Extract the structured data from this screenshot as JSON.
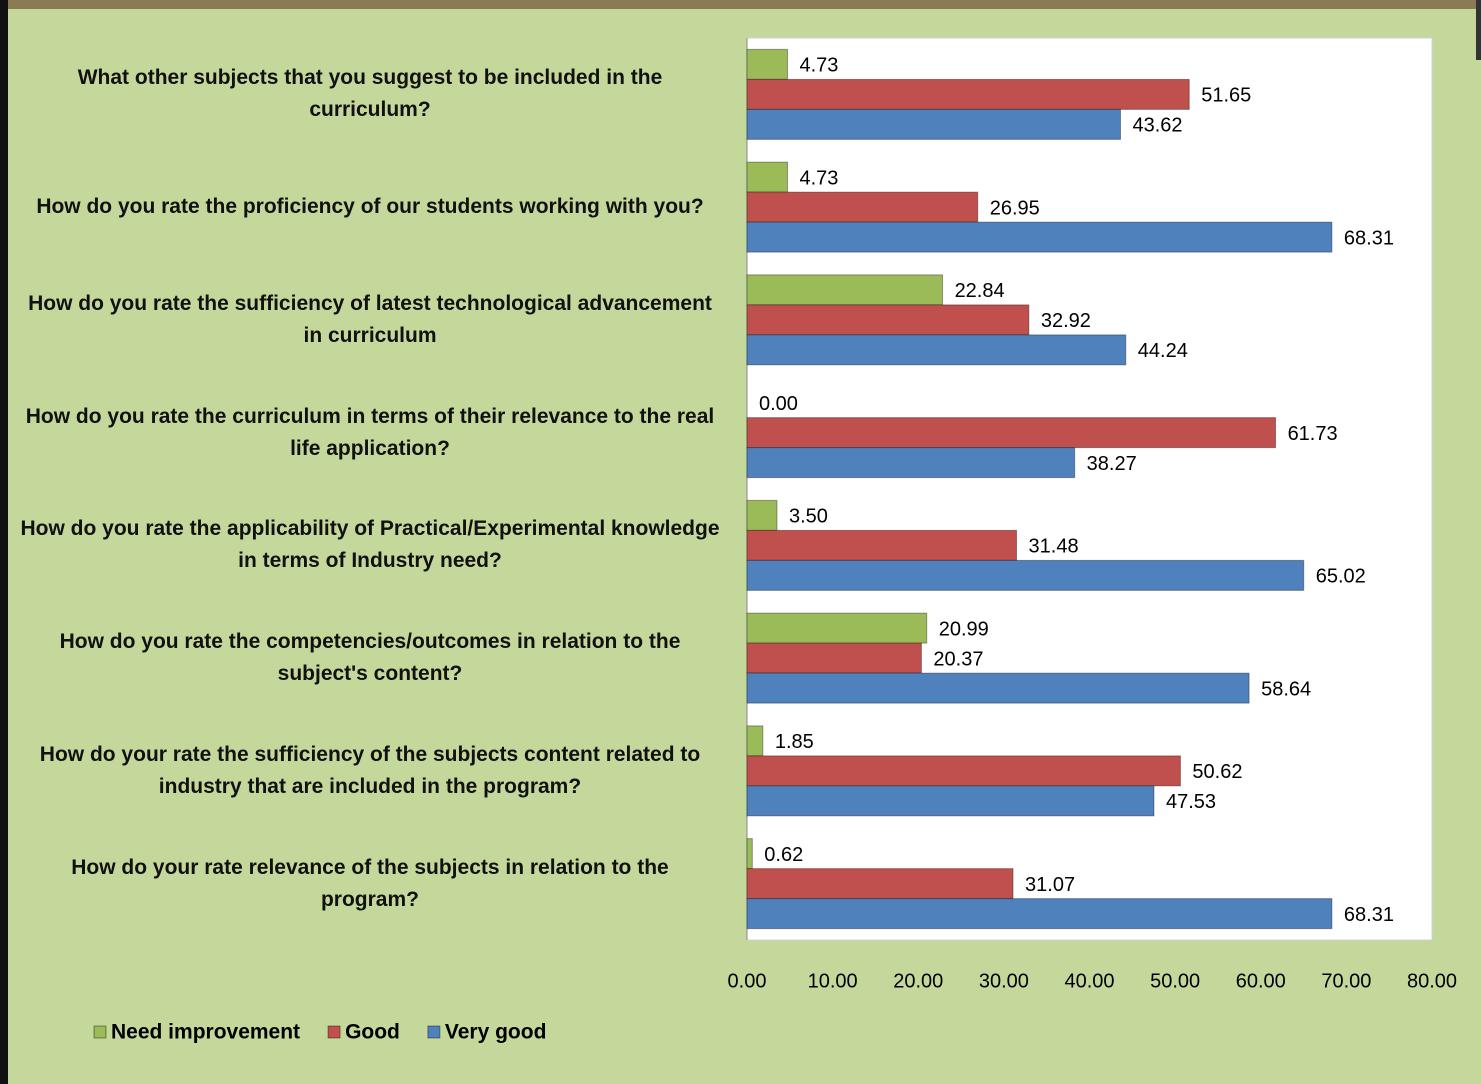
{
  "chart_data": {
    "type": "hbar",
    "categories": [
      "What other subjects that you suggest to be included in the curriculum?",
      "How do you rate the proficiency of our students working with you?",
      "How do you rate the sufficiency of latest technological advancement in curriculum",
      "How do you rate the curriculum in terms of their relevance to the real life application?",
      "How do you rate the applicability of Practical/Experimental knowledge in terms of Industry need?",
      "How do you rate the competencies/outcomes in relation to the subject's content?",
      "How do your rate the sufficiency of the subjects content related to industry that are included in the program?",
      "How do your rate relevance of the subjects in relation to the program?"
    ],
    "series": [
      {
        "name": "Need improvement",
        "color": "#9bbb59",
        "values": [
          4.73,
          4.73,
          22.84,
          0,
          3.5,
          20.99,
          1.85,
          0.62
        ],
        "value_labels": [
          "4.73",
          "4.73",
          "22.84",
          "0.00",
          "3.50",
          "20.99",
          "1.85",
          "0.62"
        ]
      },
      {
        "name": "Good",
        "color": "#c0504d",
        "values": [
          51.65,
          26.95,
          32.92,
          61.73,
          31.48,
          20.37,
          50.62,
          31.07
        ],
        "value_labels": [
          "51.65",
          "26.95",
          "32.92",
          "61.73",
          "31.48",
          "20.37",
          "50.62",
          "31.07"
        ]
      },
      {
        "name": "Very good",
        "color": "#4f81bd",
        "values": [
          43.62,
          68.31,
          44.24,
          38.27,
          65.02,
          58.64,
          47.53,
          68.31
        ],
        "value_labels": [
          "43.62",
          "68.31",
          "44.24",
          "38.27",
          "65.02",
          "58.64",
          "47.53",
          "68.31"
        ]
      }
    ],
    "xlim": [
      0,
      80
    ],
    "xticks": [
      {
        "value": 0,
        "label": "0.00"
      },
      {
        "value": 10,
        "label": "10.00"
      },
      {
        "value": 20,
        "label": "20.00"
      },
      {
        "value": 30,
        "label": "30.00"
      },
      {
        "value": 40,
        "label": "40.00"
      },
      {
        "value": 50,
        "label": "50.00"
      },
      {
        "value": 60,
        "label": "60.00"
      },
      {
        "value": 70,
        "label": "70.00"
      },
      {
        "value": 80,
        "label": "80.00"
      }
    ],
    "legend": "bottom-left"
  }
}
